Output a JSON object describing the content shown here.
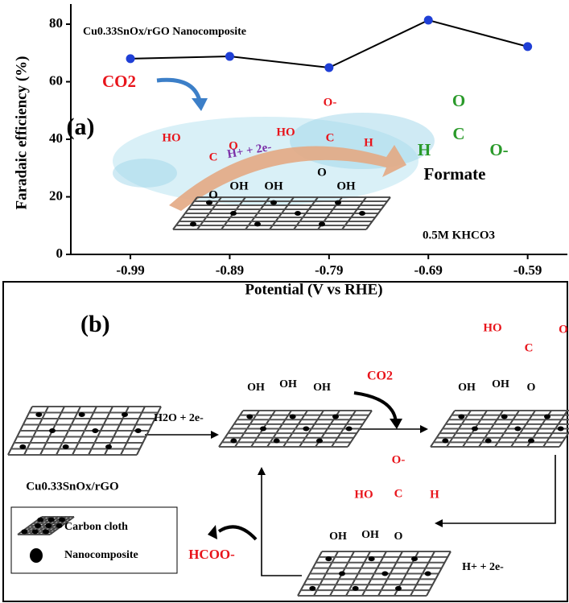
{
  "chart_data": {
    "type": "line",
    "title": "Cu0.33SnOx/rGO Nanocomposite",
    "x_label": "Potential (V vs RHE)",
    "y_label": "Faradaic efficiency (%)",
    "x": [
      -0.99,
      -0.89,
      -0.79,
      -0.69,
      -0.59
    ],
    "values": [
      68,
      68.8,
      64.9,
      81.4,
      72.2
    ],
    "color": "#1f3fd6",
    "xlim": [
      -1.05,
      -0.55
    ],
    "ylim": [
      0,
      87
    ],
    "xticks": [
      -0.99,
      -0.89,
      -0.79,
      -0.69,
      -0.59
    ],
    "yticks": [
      0,
      20,
      40,
      60,
      80
    ],
    "annotations": [
      "(a)",
      "CO2",
      "H+ + 2e-",
      "Formate",
      "0.5M KHCO3",
      "O",
      "C",
      "H",
      "O-",
      "HO",
      "C",
      "O",
      "O",
      "O-",
      "HO",
      "C",
      "H",
      "O",
      "OH",
      "OH",
      "OH"
    ]
  },
  "scheme": {
    "panel_label": "(b)",
    "labels": [
      "Cu0.33SnOx/rGO",
      "H2O + 2e-",
      "OH",
      "OH",
      "OH",
      "CO2",
      "OH",
      "OH",
      "O",
      "C",
      "HO",
      "O",
      "H+ + 2e-",
      "OH",
      "OH",
      "O",
      "C",
      "HO",
      "H",
      "O-",
      "HCOO-"
    ],
    "legend": [
      "Carbon cloth",
      "Nanocomposite"
    ]
  }
}
